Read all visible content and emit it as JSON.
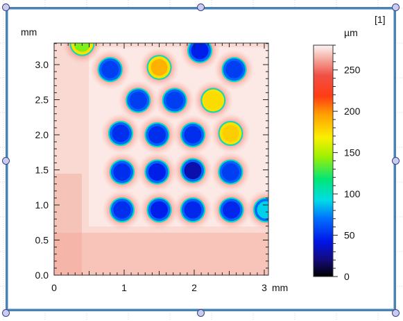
{
  "window": {
    "index_label": "[1]"
  },
  "chart_data": {
    "type": "heatmap",
    "title": "",
    "x_unit": "mm",
    "y_unit": "mm",
    "z_unit": "µm",
    "xlim": [
      0,
      3.05
    ],
    "ylim": [
      0,
      3.3
    ],
    "zlim": [
      0,
      280
    ],
    "x_ticks": [
      0,
      1,
      2,
      3
    ],
    "x_tick_labels": [
      "0",
      "1",
      "2",
      "3"
    ],
    "y_ticks": [
      0,
      0.5,
      1.0,
      1.5,
      2.0,
      2.5,
      3.0
    ],
    "y_tick_labels": [
      "0.0",
      "0.5",
      "1.0",
      "1.5",
      "2.0",
      "2.5",
      "3.0"
    ],
    "colorbar_ticks": [
      0,
      50,
      100,
      150,
      200,
      250
    ],
    "colorbar_tick_labels": [
      "0",
      "50",
      "100",
      "150",
      "200",
      "250"
    ],
    "background_height": 262,
    "pits": [
      {
        "x": 0.97,
        "y": 0.93,
        "depth": 50
      },
      {
        "x": 1.5,
        "y": 0.93,
        "depth": 45
      },
      {
        "x": 1.98,
        "y": 0.93,
        "depth": 48
      },
      {
        "x": 2.53,
        "y": 0.93,
        "depth": 48
      },
      {
        "x": 3.02,
        "y": 0.93,
        "depth": 90
      },
      {
        "x": 0.97,
        "y": 1.47,
        "depth": 50
      },
      {
        "x": 1.47,
        "y": 1.47,
        "depth": 45
      },
      {
        "x": 1.98,
        "y": 1.49,
        "depth": 30
      },
      {
        "x": 2.52,
        "y": 1.47,
        "depth": 55
      },
      {
        "x": 0.95,
        "y": 2.02,
        "depth": 50
      },
      {
        "x": 1.47,
        "y": 2.0,
        "depth": 50
      },
      {
        "x": 1.98,
        "y": 2.0,
        "depth": 50
      },
      {
        "x": 2.52,
        "y": 2.02,
        "depth": 180
      },
      {
        "x": 1.2,
        "y": 2.49,
        "depth": 55
      },
      {
        "x": 1.72,
        "y": 2.49,
        "depth": 55
      },
      {
        "x": 2.27,
        "y": 2.49,
        "depth": 175
      },
      {
        "x": 0.8,
        "y": 2.93,
        "depth": 55
      },
      {
        "x": 1.5,
        "y": 2.96,
        "depth": 190
      },
      {
        "x": 2.57,
        "y": 2.93,
        "depth": 55
      },
      {
        "x": 0.4,
        "y": 3.3,
        "depth": 140
      },
      {
        "x": 2.08,
        "y": 3.2,
        "depth": 45
      }
    ]
  }
}
